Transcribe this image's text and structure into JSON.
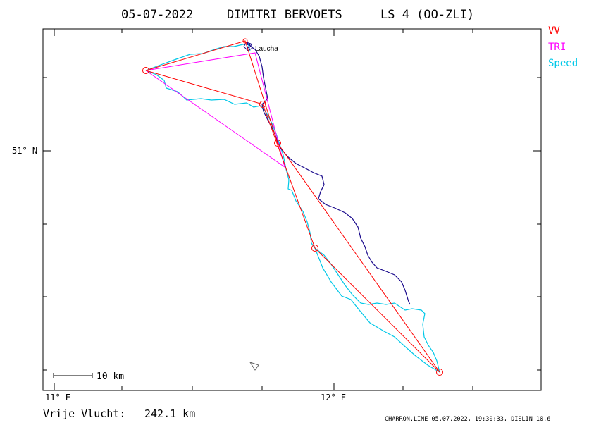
{
  "header": {
    "date": "05-07-2022",
    "pilot": "DIMITRI BERVOETS",
    "glider": "LS 4 (OO-ZLI)"
  },
  "legend": [
    {
      "label": "VV",
      "color": "#ff0000"
    },
    {
      "label": "TRI",
      "color": "#ff00ff"
    },
    {
      "label": "Speed",
      "color": "#00c8e8"
    }
  ],
  "map": {
    "place_label": "Laucha",
    "lat_label": "51° N",
    "lon_labels": [
      "11° E",
      "12° E"
    ],
    "scale_label": "10 km"
  },
  "footer": {
    "free_flight_label": "Vrije Vlucht:",
    "free_flight_value": "242.1 km",
    "credit": "CHARRON.LINE 05.07.2022, 19:30:33, DISLIN 10.6"
  },
  "colors": {
    "track_dark": "#1a0a8c",
    "track_speed": "#00c8e8",
    "route_vv": "#ff0000",
    "route_tri": "#ff00ff",
    "frame": "#000000"
  }
}
